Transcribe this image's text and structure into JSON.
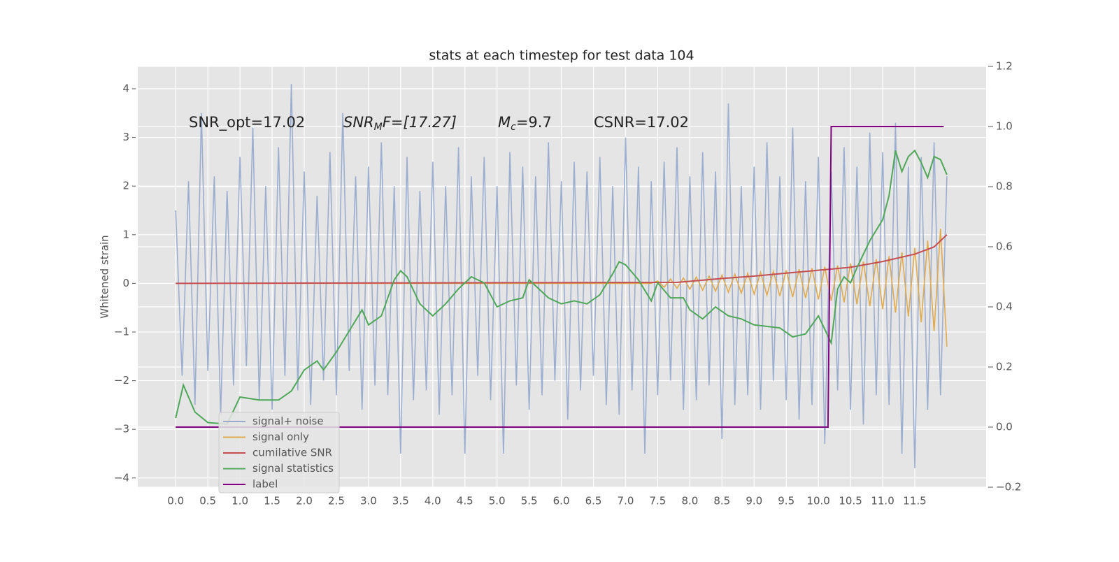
{
  "chart_data": {
    "type": "line",
    "title": "stats at each timestep for test data 104",
    "ylabel": "Whitened strain",
    "annotations": [
      {
        "text": "SNR_opt=17.02"
      },
      {
        "base": "SNR",
        "sub": "M",
        "rest": "F=[17.27]"
      },
      {
        "base": "M",
        "sub": "c",
        "rest": "=9.7"
      },
      {
        "text": "CSNR=17.02"
      }
    ],
    "x": [
      0,
      0.1,
      0.2,
      0.3,
      0.4,
      0.5,
      0.6,
      0.7,
      0.8,
      0.9,
      1,
      1.1,
      1.2,
      1.3,
      1.4,
      1.5,
      1.6,
      1.7,
      1.8,
      1.9,
      2,
      2.1,
      2.2,
      2.3,
      2.4,
      2.5,
      2.6,
      2.7,
      2.8,
      2.9,
      3,
      3.1,
      3.2,
      3.3,
      3.4,
      3.5,
      3.6,
      3.7,
      3.8,
      3.9,
      4,
      4.1,
      4.2,
      4.3,
      4.4,
      4.5,
      4.6,
      4.7,
      4.8,
      4.9,
      5,
      5.1,
      5.2,
      5.3,
      5.4,
      5.5,
      5.6,
      5.7,
      5.8,
      5.9,
      6,
      6.1,
      6.2,
      6.3,
      6.4,
      6.5,
      6.6,
      6.7,
      6.8,
      6.9,
      7,
      7.1,
      7.2,
      7.3,
      7.4,
      7.5,
      7.6,
      7.7,
      7.8,
      7.9,
      8,
      8.1,
      8.2,
      8.3,
      8.4,
      8.5,
      8.6,
      8.7,
      8.8,
      8.9,
      9,
      9.1,
      9.2,
      9.3,
      9.4,
      9.5,
      9.6,
      9.7,
      9.8,
      9.9,
      10,
      10.1,
      10.2,
      10.3,
      10.4,
      10.5,
      10.6,
      10.7,
      10.8,
      10.9,
      11,
      11.1,
      11.2,
      11.3,
      11.4,
      11.5,
      11.6,
      11.7,
      11.8,
      11.9,
      12
    ],
    "series": [
      {
        "name": "signal+ noise",
        "color": "#98abcf",
        "axis": "y",
        "values": [
          1.5,
          -1.9,
          2.1,
          -2.5,
          3.5,
          -1.8,
          2.2,
          -2.7,
          1.9,
          -2.1,
          2.6,
          -1.7,
          3.2,
          -2.4,
          2.0,
          -2.6,
          2.8,
          -1.9,
          4.1,
          -2.2,
          2.3,
          -2.5,
          1.8,
          -2.0,
          2.7,
          -2.3,
          3.5,
          -1.8,
          2.2,
          -2.6,
          2.4,
          -2.1,
          2.9,
          -2.3,
          2.0,
          -3.5,
          2.6,
          -2.4,
          1.9,
          -2.2,
          2.5,
          -2.7,
          2.0,
          -2.3,
          2.8,
          -3.5,
          2.2,
          -1.9,
          2.6,
          -2.4,
          2.0,
          -3.5,
          2.7,
          -2.1,
          2.4,
          -2.6,
          2.2,
          -2.3,
          2.9,
          -2.0,
          2.1,
          -2.8,
          2.5,
          -2.2,
          2.3,
          -1.9,
          2.6,
          -2.5,
          2.0,
          -2.7,
          3.0,
          -2.2,
          2.4,
          -3.5,
          2.1,
          -2.3,
          2.5,
          -2.0,
          2.8,
          -2.6,
          2.2,
          -2.4,
          2.7,
          -2.1,
          2.3,
          -3.2,
          3.7,
          -2.5,
          2.0,
          -2.3,
          2.4,
          -2.6,
          2.9,
          -2.0,
          2.2,
          -2.4,
          3.2,
          -2.8,
          2.1,
          -2.5,
          2.6,
          -3.3,
          2.3,
          -2.2,
          2.8,
          -2.6,
          2.4,
          -2.9,
          3.1,
          -2.3,
          2.7,
          -2.5,
          3.3,
          -3.5,
          2.4,
          -3.8,
          2.6,
          -2.6,
          2.9,
          -2.3,
          2.2
        ]
      },
      {
        "name": "signal only",
        "color": "#e0aa4e",
        "axis": "y",
        "values": [
          0,
          0,
          0,
          0,
          0,
          0,
          0,
          0,
          0,
          0,
          0,
          0,
          0,
          0,
          0,
          0,
          0,
          0,
          0,
          0,
          0,
          0,
          0,
          0,
          0,
          0,
          0,
          0,
          0,
          0,
          0,
          0,
          0,
          0,
          0,
          0,
          0,
          0,
          0,
          0,
          0,
          0,
          0,
          0,
          0,
          0,
          0,
          0,
          0,
          0,
          0,
          0,
          0,
          0,
          0,
          0,
          0,
          0,
          0,
          0,
          0,
          0,
          0,
          0,
          0,
          0,
          0,
          0,
          0,
          0,
          0,
          0,
          0,
          0,
          0,
          0.05,
          -0.08,
          0.09,
          -0.1,
          0.11,
          -0.12,
          0.13,
          -0.14,
          0.15,
          -0.16,
          0.17,
          -0.18,
          0.19,
          -0.2,
          0.21,
          -0.22,
          0.23,
          -0.24,
          0.25,
          -0.26,
          0.27,
          -0.28,
          0.29,
          -0.3,
          0.31,
          -0.33,
          0.34,
          -0.36,
          0.37,
          -0.39,
          0.41,
          -0.43,
          0.45,
          -0.47,
          0.5,
          -0.53,
          0.56,
          -0.6,
          0.64,
          -0.68,
          0.73,
          -0.8,
          0.88,
          -0.98,
          1.12,
          -1.3
        ]
      },
      {
        "name": "cumilative SNR",
        "color": "#c44e52",
        "axis": "y",
        "x": [
          0,
          7.8,
          8.5,
          9,
          9.5,
          10,
          10.5,
          11,
          11.5,
          11.8,
          12
        ],
        "values": [
          0,
          0.02,
          0.1,
          0.15,
          0.21,
          0.27,
          0.33,
          0.45,
          0.6,
          0.75,
          1.0
        ]
      },
      {
        "name": "signal statistics",
        "color": "#4fa75a",
        "axis": "y2",
        "x": [
          0,
          0.12,
          0.3,
          0.5,
          0.8,
          1,
          1.3,
          1.6,
          1.8,
          2,
          2.2,
          2.3,
          2.5,
          2.7,
          2.9,
          3,
          3.2,
          3.4,
          3.5,
          3.6,
          3.8,
          4,
          4.2,
          4.4,
          4.6,
          4.8,
          5,
          5.2,
          5.4,
          5.5,
          5.6,
          5.8,
          6,
          6.2,
          6.4,
          6.6,
          6.8,
          6.9,
          7,
          7.2,
          7.4,
          7.5,
          7.7,
          7.9,
          8,
          8.2,
          8.4,
          8.6,
          8.8,
          9,
          9.4,
          9.6,
          9.8,
          10,
          10.2,
          10.3,
          10.4,
          10.5,
          10.6,
          10.8,
          11,
          11.1,
          11.2,
          11.3,
          11.4,
          11.5,
          11.6,
          11.7,
          11.8,
          11.9,
          12
        ],
        "values": [
          0.03,
          0.14,
          0.05,
          0.015,
          0.01,
          0.1,
          0.09,
          0.09,
          0.12,
          0.19,
          0.22,
          0.19,
          0.25,
          0.32,
          0.39,
          0.34,
          0.37,
          0.49,
          0.52,
          0.5,
          0.41,
          0.37,
          0.41,
          0.46,
          0.5,
          0.48,
          0.4,
          0.42,
          0.43,
          0.49,
          0.47,
          0.43,
          0.41,
          0.42,
          0.41,
          0.44,
          0.51,
          0.55,
          0.54,
          0.49,
          0.42,
          0.48,
          0.43,
          0.43,
          0.39,
          0.36,
          0.4,
          0.37,
          0.36,
          0.34,
          0.33,
          0.3,
          0.31,
          0.37,
          0.28,
          0.46,
          0.5,
          0.48,
          0.53,
          0.62,
          0.69,
          0.77,
          0.92,
          0.85,
          0.9,
          0.92,
          0.88,
          0.83,
          0.9,
          0.89,
          0.84
        ]
      },
      {
        "name": "label",
        "color": "#800080",
        "axis": "y2",
        "x": [
          0,
          10.15,
          10.2,
          11.95
        ],
        "values": [
          0,
          0,
          1,
          1
        ]
      }
    ],
    "xlim": [
      -0.59,
      12.61
    ],
    "xticks": [
      {
        "value": 0,
        "label": "0.0"
      },
      0.5,
      {
        "value": 1,
        "label": "1.0"
      },
      1.5,
      {
        "value": 2,
        "label": "2.0"
      },
      2.5,
      {
        "value": 3,
        "label": "3.0"
      },
      3.5,
      {
        "value": 4,
        "label": "4.0"
      },
      4.5,
      {
        "value": 5,
        "label": "5.0"
      },
      5.5,
      {
        "value": 6,
        "label": "6.0"
      },
      6.5,
      {
        "value": 7,
        "label": "7.0"
      },
      7.5,
      {
        "value": 8,
        "label": "8.0"
      },
      8.5,
      {
        "value": 9,
        "label": "9.0"
      },
      9.5,
      {
        "value": 10,
        "label": "10.0"
      },
      10.5,
      {
        "value": 11,
        "label": "11.0"
      },
      11.5
    ],
    "ylim": [
      -4.19,
      4.46
    ],
    "yticks": [
      {
        "value": -4,
        "label": "−4"
      },
      {
        "value": -3,
        "label": "−3"
      },
      {
        "value": -2,
        "label": "−2"
      },
      {
        "value": -1,
        "label": "−1"
      },
      0,
      1,
      2,
      3,
      4
    ],
    "y2lim": [
      -0.2,
      1.2
    ],
    "y2ticks": [
      {
        "value": -0.2,
        "label": "−0.2"
      },
      {
        "value": 0,
        "label": "0.0"
      },
      0.2,
      0.4,
      0.6,
      0.8,
      {
        "value": 1,
        "label": "1.0"
      },
      1.2
    ],
    "grid": true,
    "legend": "lower left"
  }
}
